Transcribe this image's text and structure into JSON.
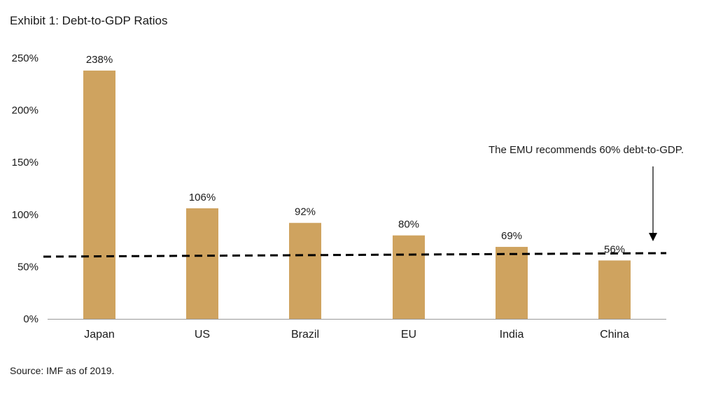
{
  "title": "Exhibit 1: Debt-to-GDP Ratios",
  "source": "Source: IMF as of 2019.",
  "chart_data": {
    "type": "bar",
    "categories": [
      "Japan",
      "US",
      "Brazil",
      "EU",
      "India",
      "China"
    ],
    "values": [
      238,
      106,
      92,
      80,
      69,
      56
    ],
    "data_labels": [
      "238%",
      "106%",
      "92%",
      "80%",
      "69%",
      "56%"
    ],
    "ylim": [
      0,
      250
    ],
    "yticks": [
      0,
      50,
      100,
      150,
      200,
      250
    ],
    "ytick_labels": [
      "0%",
      "50%",
      "100%",
      "150%",
      "200%",
      "250%"
    ],
    "reference_line": {
      "value": 60,
      "style": "dashed"
    },
    "annotation": "The EMU recommends 60% debt-to-GDP.",
    "grid": false,
    "legend": "none",
    "colors": {
      "bar": "#CFA35F",
      "text": "#1a1a1a",
      "axis": "#999999",
      "line": "#000000"
    }
  }
}
